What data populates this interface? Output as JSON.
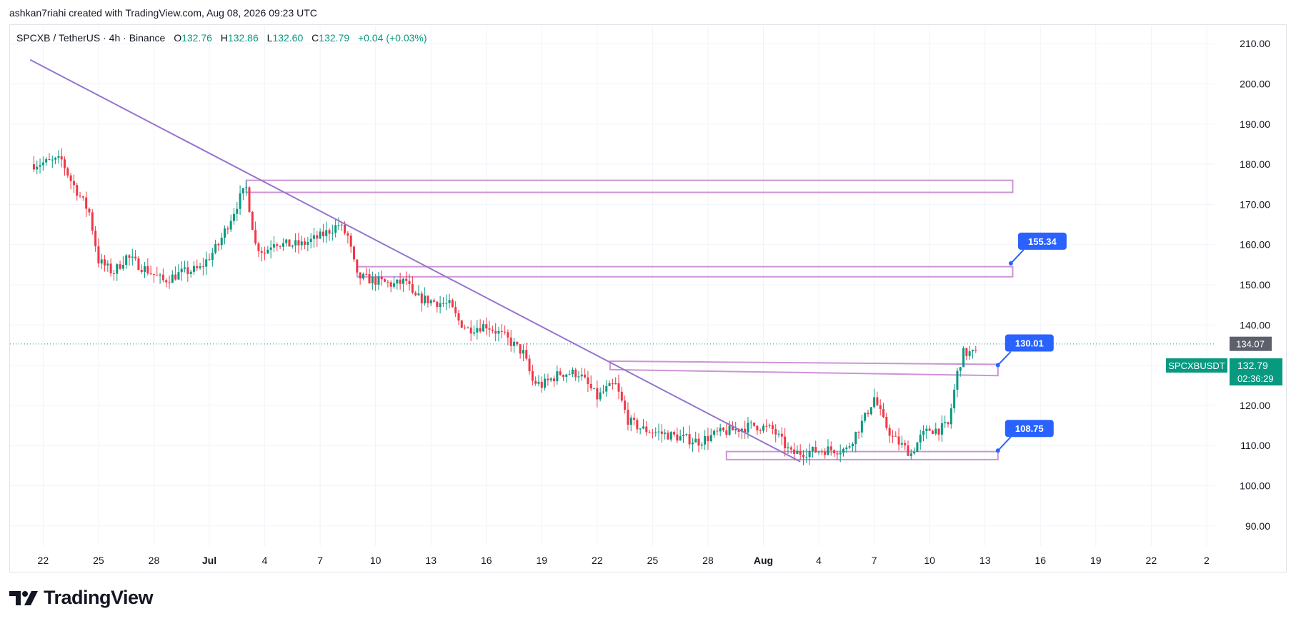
{
  "credit": "ashkan7riahi created with TradingView.com, Aug 08, 2026 09:23 UTC",
  "legend": {
    "symbol": "SPCXB / TetherUS · 4h · Binance",
    "open_label": "O",
    "open": "132.76",
    "high_label": "H",
    "high": "132.86",
    "low_label": "L",
    "low": "132.60",
    "close_label": "C",
    "close": "132.79",
    "change": "+0.04 (+0.03%)"
  },
  "colors": {
    "up": "#089981",
    "down": "#f23645",
    "trend": "#9575cd",
    "zone": "#ce93d8",
    "callout": "#2962ff",
    "grid": "#f0f3fa"
  },
  "price_tags": {
    "symbol_name": "SPCXBUSDT",
    "last_price": "132.79",
    "countdown": "02:36:29",
    "high_marker": "134.07"
  },
  "brand": "TradingView",
  "chart_data": {
    "type": "candlestick",
    "interval": "4h",
    "y_axis": {
      "min": 85,
      "max": 213,
      "ticks": [
        "210.00",
        "200.00",
        "190.00",
        "180.00",
        "170.00",
        "160.00",
        "150.00",
        "140.00",
        "130.00",
        "120.00",
        "110.00",
        "100.00",
        "90.00"
      ],
      "position": "right"
    },
    "x_axis": {
      "tick_labels": [
        "22",
        "25",
        "28",
        "Jul",
        "4",
        "7",
        "10",
        "13",
        "16",
        "19",
        "22",
        "25",
        "28",
        "Aug",
        "4",
        "7",
        "10",
        "13",
        "16",
        "19",
        "22",
        "2"
      ]
    },
    "price_path": [
      [
        -9.5,
        180
      ],
      [
        -8,
        181
      ],
      [
        -7.5,
        176
      ],
      [
        -6.5,
        168
      ],
      [
        -6,
        156
      ],
      [
        -5.2,
        153
      ],
      [
        -4.5,
        157
      ],
      [
        -3.5,
        154
      ],
      [
        -2.5,
        151
      ],
      [
        -1.5,
        153
      ],
      [
        -0.5,
        154
      ],
      [
        0.5,
        160
      ],
      [
        1,
        165
      ],
      [
        1.7,
        172
      ],
      [
        2,
        174
      ],
      [
        2.5,
        160
      ],
      [
        3,
        158
      ],
      [
        3.5,
        161
      ],
      [
        4,
        160
      ],
      [
        5,
        160
      ],
      [
        6,
        162
      ],
      [
        7,
        165
      ],
      [
        7.5,
        162
      ],
      [
        8,
        152
      ],
      [
        9,
        151
      ],
      [
        10,
        150
      ],
      [
        10.7,
        151
      ],
      [
        11,
        147
      ],
      [
        12,
        146
      ],
      [
        13,
        145
      ],
      [
        13.5,
        141
      ],
      [
        14,
        139
      ],
      [
        15,
        140
      ],
      [
        16,
        137
      ],
      [
        17,
        133
      ],
      [
        17.5,
        126
      ],
      [
        18,
        125
      ],
      [
        19,
        128
      ],
      [
        20,
        128
      ],
      [
        21,
        122
      ],
      [
        21.5,
        124
      ],
      [
        22,
        125
      ],
      [
        22.7,
        116
      ],
      [
        23.5,
        114
      ],
      [
        24.5,
        113
      ],
      [
        25.5,
        112
      ],
      [
        26.5,
        111
      ],
      [
        27.5,
        113
      ],
      [
        28.5,
        114
      ],
      [
        29.5,
        115
      ],
      [
        30.5,
        114
      ],
      [
        31.5,
        108
      ],
      [
        32.5,
        108.5
      ],
      [
        33.5,
        109
      ],
      [
        34.5,
        109
      ],
      [
        35,
        113
      ],
      [
        35.5,
        117
      ],
      [
        36,
        122
      ],
      [
        36.5,
        116
      ],
      [
        37,
        112
      ],
      [
        37.5,
        110
      ],
      [
        38,
        108
      ],
      [
        38.5,
        112
      ],
      [
        39,
        114
      ],
      [
        39.5,
        114
      ],
      [
        40,
        115
      ],
      [
        40.5,
        128
      ],
      [
        40.8,
        133
      ],
      [
        41.2,
        133
      ],
      [
        41.5,
        132.8
      ]
    ],
    "last_price": 132.79,
    "high_marker": 134.07,
    "trendline": {
      "start": [
        -9.7,
        206
      ],
      "end": [
        32,
        106
      ]
    },
    "zones": [
      {
        "x_start": 2,
        "x_end": 43.5,
        "top": 176,
        "bottom": 173
      },
      {
        "x_start": 8,
        "x_end": 43.5,
        "top": 154.5,
        "bottom": 152
      },
      {
        "x_start": 21.7,
        "x_end": 42.7,
        "top_start": 131,
        "top_end": 130.2,
        "bottom_start": 128.9,
        "bottom_end": 127.4
      },
      {
        "x_start": 28,
        "x_end": 42.7,
        "top": 108.5,
        "bottom": 106.5
      }
    ],
    "callouts": [
      {
        "label": "155.34",
        "anchor": [
          43.4,
          155.34
        ]
      },
      {
        "label": "130.01",
        "anchor": [
          42.7,
          130.01
        ]
      },
      {
        "label": "108.75",
        "anchor": [
          42.7,
          108.75
        ]
      }
    ],
    "grid": true,
    "legend": "top-left"
  }
}
